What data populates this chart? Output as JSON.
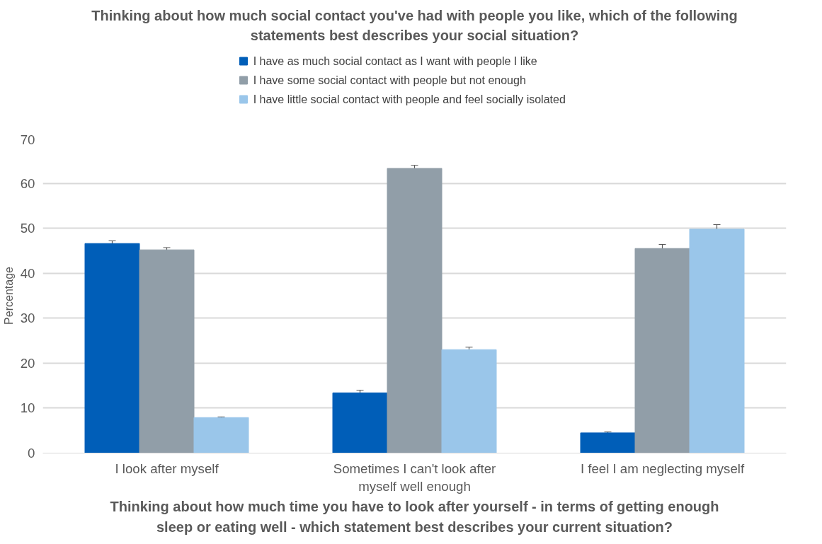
{
  "chart_data": {
    "type": "bar",
    "title": "Thinking about how much social contact you've had with people you like, which of the following statements best describes your social situation?",
    "xlabel": "Thinking about how much time you have to look after yourself - in terms of getting enough sleep or eating well - which statement best describes your current situation?",
    "ylabel": "Percentage",
    "categories": [
      "I look after myself",
      "Sometimes I can't look after myself well enough",
      "I feel I am neglecting myself"
    ],
    "series": [
      {
        "name": "I have as much social contact as I want with people I like",
        "color": "#005eb8",
        "values": [
          46.6,
          13.4,
          4.5
        ],
        "errors": [
          0.6,
          0.6,
          0.2
        ]
      },
      {
        "name": "I have some social contact with people but not enough",
        "color": "#919ea8",
        "values": [
          45.2,
          63.3,
          45.5
        ],
        "errors": [
          0.5,
          0.7,
          0.9
        ]
      },
      {
        "name": "I have little social contact with people and feel socially isolated",
        "color": "#9ac6ea",
        "values": [
          7.9,
          23.0,
          49.8
        ],
        "errors": [
          0.15,
          0.55,
          1.0
        ]
      }
    ],
    "ylim": [
      0,
      70
    ],
    "yticks": [
      0,
      10,
      20,
      30,
      40,
      50,
      60,
      70
    ],
    "grid": "y",
    "legend": "top"
  }
}
